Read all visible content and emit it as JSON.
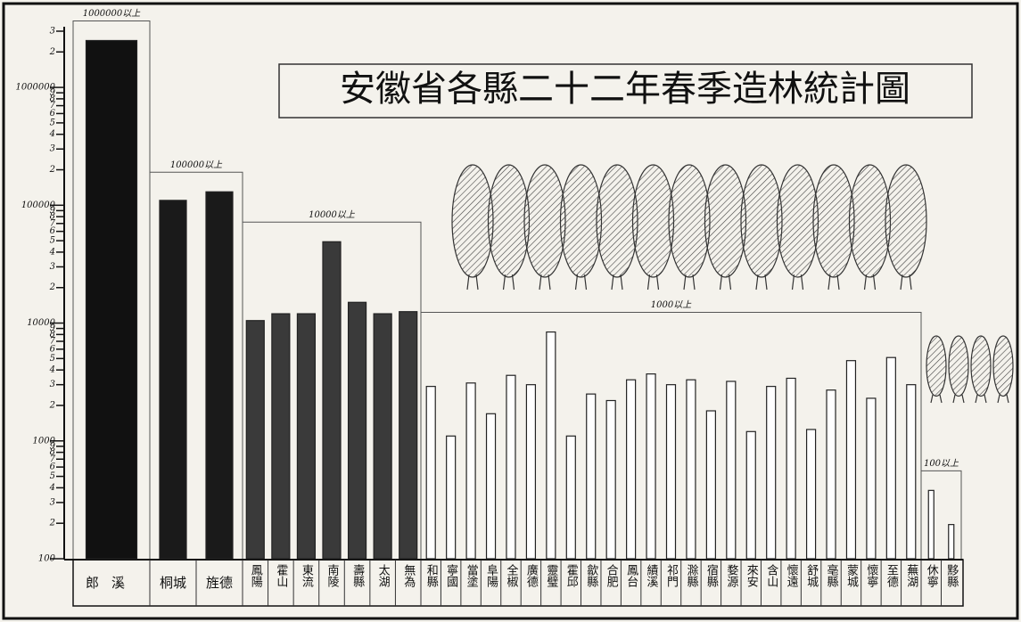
{
  "chart_data": {
    "type": "bar",
    "title": "安徽省各縣二十二年春季造林統計圖",
    "log_scale": true,
    "ylim": [
      100,
      3000000
    ],
    "yticks": [
      100,
      {
        "value": 200,
        "label": "2"
      },
      {
        "value": 300,
        "label": "3"
      },
      {
        "value": 400,
        "label": "4"
      },
      {
        "value": 500,
        "label": "5"
      },
      {
        "value": 600,
        "label": "6"
      },
      {
        "value": 700,
        "label": "7"
      },
      {
        "value": 800,
        "label": "8"
      },
      {
        "value": 900,
        "label": "9"
      },
      1000,
      {
        "value": 2000,
        "label": "2"
      },
      {
        "value": 3000,
        "label": "3"
      },
      {
        "value": 4000,
        "label": "4"
      },
      {
        "value": 5000,
        "label": "5"
      },
      {
        "value": 6000,
        "label": "6"
      },
      {
        "value": 7000,
        "label": "7"
      },
      {
        "value": 8000,
        "label": "8"
      },
      {
        "value": 9000,
        "label": "9"
      },
      10000,
      {
        "value": 20000,
        "label": "2"
      },
      {
        "value": 30000,
        "label": "3"
      },
      {
        "value": 40000,
        "label": "4"
      },
      {
        "value": 50000,
        "label": "5"
      },
      {
        "value": 60000,
        "label": "6"
      },
      {
        "value": 70000,
        "label": "7"
      },
      {
        "value": 80000,
        "label": "8"
      },
      {
        "value": 90000,
        "label": "9"
      },
      100000,
      {
        "value": 200000,
        "label": "2"
      },
      {
        "value": 300000,
        "label": "3"
      },
      {
        "value": 400000,
        "label": "4"
      },
      {
        "value": 500000,
        "label": "5"
      },
      {
        "value": 600000,
        "label": "6"
      },
      {
        "value": 700000,
        "label": "7"
      },
      {
        "value": 800000,
        "label": "8"
      },
      {
        "value": 900000,
        "label": "9"
      },
      1000000,
      {
        "value": 2000000,
        "label": "2"
      },
      {
        "value": 3000000,
        "label": "3"
      }
    ],
    "groups": [
      {
        "label": "1000000以上",
        "color": "#111111",
        "categories": [
          "郎溪"
        ],
        "values": [
          2500000
        ]
      },
      {
        "label": "100000以上",
        "color": "#1a1a1a",
        "categories": [
          "桐城",
          "旌德"
        ],
        "values": [
          110000,
          130000
        ]
      },
      {
        "label": "10000以上",
        "color": "#3a3a3a",
        "categories": [
          "鳳陽",
          "霍山",
          "東流",
          "南陵",
          "壽縣",
          "太湖",
          "無為"
        ],
        "values": [
          10500,
          12000,
          12000,
          49000,
          15000,
          12000,
          12500
        ]
      },
      {
        "label": "1000以上",
        "color": "#ffffff",
        "categories": [
          "和縣",
          "寧國",
          "當塗",
          "阜陽",
          "全椒",
          "廣德",
          "靈璧",
          "霍邱",
          "歙縣",
          "合肥",
          "鳳台",
          "績溪",
          "祁門",
          "滁縣",
          "宿縣",
          "婺源",
          "來安",
          "含山",
          "懷遠",
          "舒城",
          "亳縣",
          "蒙城",
          "懷寧",
          "至德",
          "蕪湖"
        ],
        "values": [
          2900,
          1100,
          3100,
          1700,
          3600,
          3000,
          8400,
          1100,
          2500,
          2200,
          3300,
          3700,
          3000,
          3300,
          1800,
          3200,
          1200,
          2900,
          3400,
          1250,
          2700,
          4800,
          2300,
          5100,
          3000
        ]
      },
      {
        "label": "100以上",
        "color": "#ffffff",
        "categories": [
          "休寧",
          "黟縣"
        ],
        "values": [
          380,
          195
        ]
      }
    ]
  }
}
